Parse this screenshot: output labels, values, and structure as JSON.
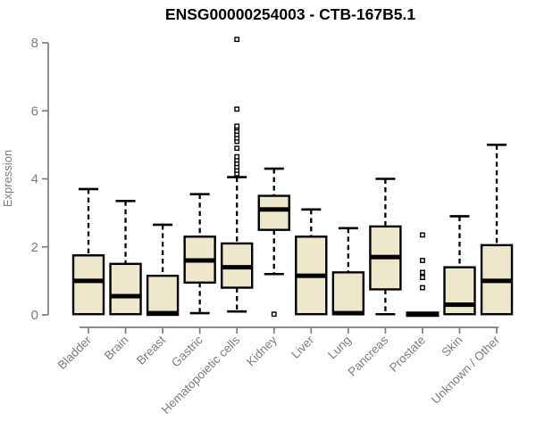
{
  "page": {
    "background": "#ffffff"
  },
  "chart_data": {
    "type": "box",
    "title": "ENSG00000254003 - CTB-167B5.1",
    "ylabel": "Expression",
    "xlabel": "",
    "ylim": [
      0,
      8
    ],
    "yticks": [
      0,
      2,
      4,
      6,
      8
    ],
    "grid": false,
    "legend": "none",
    "categories": [
      "Bladder",
      "Brain",
      "Breast",
      "Gastric",
      "Hematopoietic cells",
      "Kidney",
      "Liver",
      "Lung",
      "Pancreas",
      "Prostate",
      "Skin",
      "Unknown / Other"
    ],
    "series": [
      {
        "name": "Bladder",
        "low": 0.02,
        "q1": 0.02,
        "median": 1.0,
        "q3": 1.75,
        "high": 3.7,
        "outliers": []
      },
      {
        "name": "Brain",
        "low": 0.02,
        "q1": 0.02,
        "median": 0.55,
        "q3": 1.5,
        "high": 3.35,
        "outliers": []
      },
      {
        "name": "Breast",
        "low": 0.0,
        "q1": 0.0,
        "median": 0.05,
        "q3": 1.15,
        "high": 2.65,
        "outliers": []
      },
      {
        "name": "Gastric",
        "low": 0.05,
        "q1": 0.95,
        "median": 1.6,
        "q3": 2.3,
        "high": 3.55,
        "outliers": []
      },
      {
        "name": "Hematopoietic cells",
        "low": 0.1,
        "q1": 0.8,
        "median": 1.4,
        "q3": 2.1,
        "high": 4.05,
        "outliers": [
          4.15,
          4.25,
          4.35,
          4.45,
          4.55,
          4.65,
          4.9,
          5.1,
          5.2,
          5.3,
          5.4,
          5.5,
          5.55,
          6.05,
          8.1
        ]
      },
      {
        "name": "Kidney",
        "low": 1.2,
        "q1": 2.5,
        "median": 3.1,
        "q3": 3.5,
        "high": 4.3,
        "outliers": [
          0.02
        ]
      },
      {
        "name": "Liver",
        "low": 0.02,
        "q1": 0.02,
        "median": 1.15,
        "q3": 2.3,
        "high": 3.1,
        "outliers": []
      },
      {
        "name": "Lung",
        "low": 0.02,
        "q1": 0.02,
        "median": 0.05,
        "q3": 1.25,
        "high": 2.55,
        "outliers": []
      },
      {
        "name": "Pancreas",
        "low": 0.02,
        "q1": 0.75,
        "median": 1.7,
        "q3": 2.6,
        "high": 4.0,
        "outliers": []
      },
      {
        "name": "Prostate",
        "low": 0.02,
        "q1": 0.02,
        "median": 0.02,
        "q3": 0.02,
        "high": 0.02,
        "outliers": [
          0.8,
          1.1,
          1.25,
          1.6,
          2.35
        ]
      },
      {
        "name": "Skin",
        "low": 0.02,
        "q1": 0.02,
        "median": 0.3,
        "q3": 1.4,
        "high": 2.9,
        "outliers": []
      },
      {
        "name": "Unknown / Other",
        "low": 0.02,
        "q1": 0.02,
        "median": 1.0,
        "q3": 2.05,
        "high": 5.0,
        "outliers": []
      }
    ],
    "colors": {
      "box_fill": "#EDE8CC",
      "box_border": "#000000",
      "median": "#000000",
      "whisker": "#000000",
      "outlier": "#000000",
      "axis": "#7d7d7d",
      "labels": "#7d7d7d",
      "title": "#000000",
      "background": "#ffffff"
    },
    "outlier_marker": "open-square",
    "whisker_style": "dashed"
  }
}
